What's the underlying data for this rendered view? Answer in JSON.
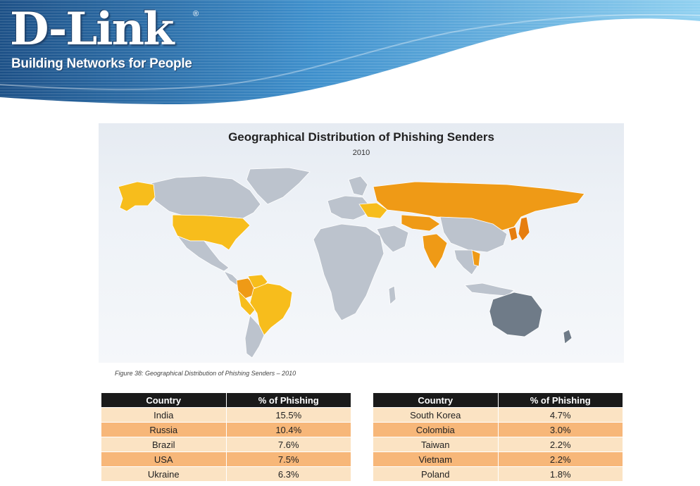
{
  "header": {
    "logo": "D-Link",
    "registered": "®",
    "tagline": "Building Networks for People",
    "wave_colors": [
      "#1b4f86",
      "#4aa3d8",
      "#8fd0f0"
    ]
  },
  "figure": {
    "title": "Geographical Distribution of Phishing Senders",
    "subtitle": "2010",
    "caption": "Figure 38: Geographical Distribution of Phishing Senders – 2010",
    "colors": {
      "other": "#bcc3cd",
      "dark": "#6f7b88",
      "yellow": "#f7bd1c",
      "orange": "#ef9a16",
      "dark_orange": "#e67e10"
    }
  },
  "tables": {
    "headers": {
      "country": "Country",
      "percent": "% of Phishing"
    },
    "left": [
      {
        "country": "India",
        "percent": "15.5%"
      },
      {
        "country": "Russia",
        "percent": "10.4%"
      },
      {
        "country": "Brazil",
        "percent": "7.6%"
      },
      {
        "country": "USA",
        "percent": "7.5%"
      },
      {
        "country": "Ukraine",
        "percent": "6.3%"
      }
    ],
    "right": [
      {
        "country": "South Korea",
        "percent": "4.7%"
      },
      {
        "country": "Colombia",
        "percent": "3.0%"
      },
      {
        "country": "Taiwan",
        "percent": "2.2%"
      },
      {
        "country": "Vietnam",
        "percent": "2.2%"
      },
      {
        "country": "Poland",
        "percent": "1.8%"
      }
    ]
  }
}
